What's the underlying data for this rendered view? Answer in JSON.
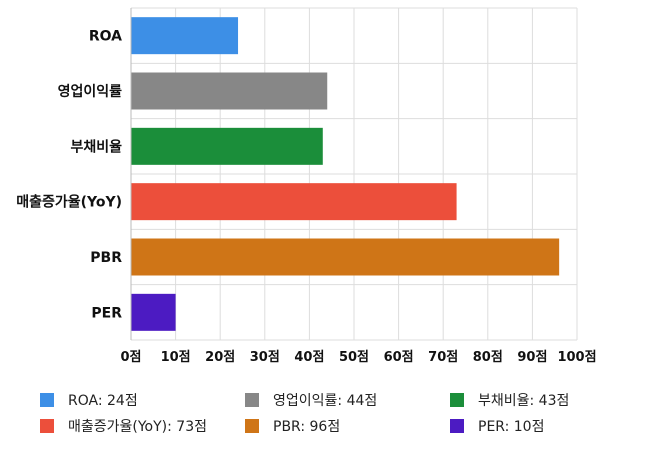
{
  "chart_data": {
    "type": "bar",
    "orientation": "horizontal",
    "title": "",
    "xlabel": "",
    "ylabel": "",
    "categories": [
      "ROA",
      "영업이익률",
      "부채비율",
      "매출증가율(YoY)",
      "PBR",
      "PER"
    ],
    "values": [
      24,
      44,
      43,
      73,
      96,
      10
    ],
    "colors": [
      "#3d8fe6",
      "#878787",
      "#1b8e3a",
      "#ec4f3b",
      "#cf7517",
      "#4c1bc2"
    ],
    "xlim": [
      0,
      100
    ],
    "x_ticks": [
      "0점",
      "10점",
      "20점",
      "30점",
      "40점",
      "50점",
      "60점",
      "70점",
      "80점",
      "90점",
      "100점"
    ],
    "grid": true,
    "legend_position": "bottom",
    "legend": [
      "ROA: 24점",
      "영업이익률: 44점",
      "부채비율: 43점",
      "매출증가율(YoY): 73점",
      "PBR: 96점",
      "PER: 10점"
    ]
  }
}
